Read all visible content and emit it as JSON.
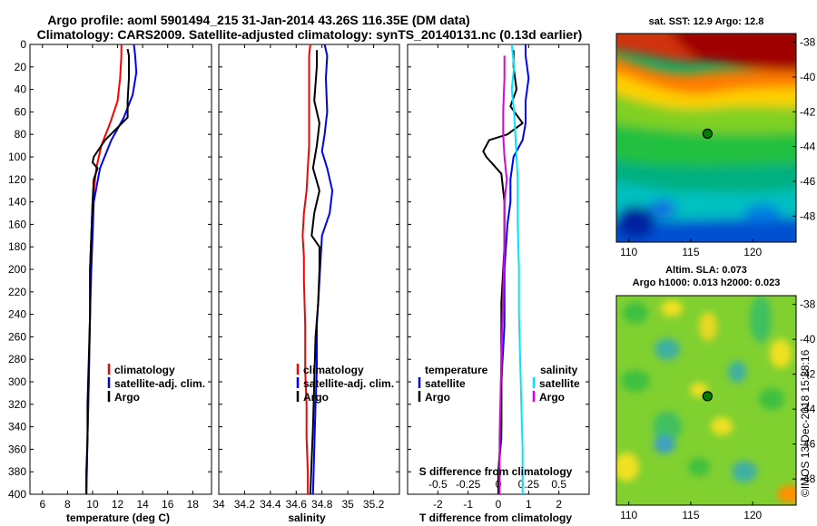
{
  "title_line1": "Argo profile: aoml 5901494_215 31-Jan-2014 43.26S 116.35E (DM data)",
  "title_line2": "Climatology: CARS2009. Satellite-adjusted climatology: synTS_20140131.nc (0.13d earlier)",
  "watermark": "©IMOS 13-Dec-2018 15:28:16",
  "colors": {
    "climatology": "#ff0000",
    "satellite": "#0000ff",
    "argo": "#000000",
    "sat_sal": "#00e5ff",
    "argo_sal": "#e000e0",
    "marker": "#008000"
  },
  "chart_data": [
    {
      "type": "line",
      "id": "temperature",
      "xlabel": "temperature (deg C)",
      "ylabel": "",
      "xlim": [
        5,
        19.5
      ],
      "ylim": [
        400,
        0
      ],
      "xticks": [
        6,
        8,
        10,
        12,
        14,
        16,
        18
      ],
      "yticks": [
        0,
        20,
        40,
        60,
        80,
        100,
        120,
        140,
        160,
        180,
        200,
        220,
        240,
        260,
        280,
        300,
        320,
        340,
        360,
        380,
        400
      ],
      "legend": [
        "climatology",
        "satellite-adj. clim.",
        "Argo"
      ],
      "series": [
        {
          "name": "climatology",
          "color": "#ff0000",
          "x": [
            12.3,
            12.3,
            12.2,
            12.0,
            11.4,
            10.7,
            10.3,
            10.0,
            9.9,
            9.8,
            9.8,
            9.7,
            9.6,
            9.5
          ],
          "y": [
            0,
            10,
            30,
            50,
            70,
            90,
            110,
            140,
            170,
            200,
            240,
            300,
            350,
            400
          ]
        },
        {
          "name": "satellite-adj. clim.",
          "color": "#0000ff",
          "x": [
            13.3,
            13.4,
            13.5,
            13.2,
            12.5,
            11.5,
            10.6,
            10.1,
            10.0,
            9.9,
            9.8,
            9.7,
            9.6,
            9.5
          ],
          "y": [
            0,
            10,
            25,
            45,
            65,
            85,
            110,
            140,
            170,
            200,
            240,
            300,
            350,
            400
          ]
        },
        {
          "name": "Argo",
          "color": "#000000",
          "x": [
            12.8,
            12.9,
            12.9,
            12.8,
            12.8,
            11.0,
            10.1,
            10.0,
            10.4,
            10.1,
            10.0,
            9.9,
            9.8,
            9.8,
            9.7,
            9.6,
            9.6,
            9.5,
            9.5
          ],
          "y": [
            4,
            10,
            30,
            50,
            65,
            85,
            100,
            105,
            110,
            120,
            140,
            170,
            200,
            240,
            280,
            320,
            350,
            380,
            400
          ]
        }
      ]
    },
    {
      "type": "line",
      "id": "salinity",
      "xlabel": "salinity",
      "ylabel": "",
      "xlim": [
        34,
        35.4
      ],
      "ylim": [
        400,
        0
      ],
      "xticks": [
        34,
        34.2,
        34.4,
        34.6,
        34.8,
        35,
        35.2
      ],
      "legend": [
        "climatology",
        "satellite-adj. clim.",
        "Argo"
      ],
      "series": [
        {
          "name": "climatology",
          "color": "#ff0000",
          "x": [
            34.71,
            34.7,
            34.7,
            34.7,
            34.7,
            34.69,
            34.68,
            34.66,
            34.65,
            34.66,
            34.66,
            34.67,
            34.67,
            34.68,
            34.68,
            34.69,
            34.69
          ],
          "y": [
            0,
            10,
            30,
            60,
            90,
            110,
            130,
            150,
            170,
            190,
            210,
            250,
            290,
            320,
            350,
            380,
            400
          ]
        },
        {
          "name": "satellite-adj. clim.",
          "color": "#0000ff",
          "x": [
            34.82,
            34.84,
            34.83,
            34.84,
            34.82,
            34.8,
            34.84,
            34.88,
            34.86,
            34.8,
            34.79,
            34.78,
            34.76,
            34.76,
            34.75,
            34.74,
            34.73
          ],
          "y": [
            0,
            10,
            30,
            60,
            80,
            95,
            110,
            130,
            150,
            170,
            190,
            210,
            250,
            290,
            320,
            360,
            400
          ]
        },
        {
          "name": "Argo",
          "color": "#000000",
          "x": [
            34.76,
            34.76,
            34.74,
            34.78,
            34.76,
            34.73,
            34.78,
            34.74,
            34.72,
            34.78,
            34.78,
            34.77,
            34.75,
            34.74,
            34.73,
            34.72,
            34.71
          ],
          "y": [
            5,
            20,
            50,
            70,
            90,
            110,
            130,
            150,
            170,
            180,
            200,
            230,
            260,
            300,
            340,
            370,
            400
          ]
        }
      ]
    },
    {
      "type": "line",
      "id": "difference",
      "xlabel": "T difference from climatology",
      "xlabel_top": "S difference from climatology",
      "xlim": [
        -3,
        3
      ],
      "ylim": [
        400,
        0
      ],
      "xticks": [
        -2,
        -1,
        0,
        1,
        2
      ],
      "xticks_top": [
        -0.5,
        -0.25,
        0,
        0.25,
        0.5
      ],
      "legend_temperature_title": "temperature",
      "legend_salinity_title": "salinity",
      "legend": [
        "satellite",
        "Argo",
        "satellite",
        "Argo"
      ],
      "series": [
        {
          "name": "temperature satellite",
          "color": "#0000ff",
          "x": [
            0.9,
            0.9,
            1.0,
            0.9,
            0.9,
            0.8,
            0.5,
            0.4,
            0.4,
            0.3,
            0.2,
            0.2,
            0.1,
            0.1,
            0.0,
            0.0
          ],
          "y": [
            0,
            10,
            30,
            50,
            70,
            85,
            100,
            120,
            140,
            160,
            200,
            250,
            300,
            350,
            380,
            400
          ]
        },
        {
          "name": "temperature Argo",
          "color": "#000000",
          "x": [
            0.5,
            0.5,
            0.6,
            0.4,
            0.8,
            0.3,
            -0.3,
            -0.5,
            -0.4,
            0.1,
            0.2,
            0.2,
            0.1,
            0.1,
            0.1,
            0.0,
            0.0
          ],
          "y": [
            5,
            20,
            40,
            55,
            70,
            80,
            85,
            95,
            100,
            115,
            140,
            180,
            230,
            290,
            340,
            380,
            400
          ]
        },
        {
          "name": "salinity satellite",
          "color": "#00e5ff",
          "x": [
            0.11,
            0.13,
            0.11,
            0.13,
            0.14,
            0.15,
            0.16,
            0.16,
            0.17,
            0.17,
            0.18,
            0.19,
            0.2,
            0.2
          ],
          "y": [
            0,
            20,
            40,
            60,
            80,
            100,
            120,
            160,
            200,
            240,
            280,
            320,
            360,
            400
          ]
        },
        {
          "name": "salinity Argo",
          "color": "#e000e0",
          "x": [
            0.05,
            0.05,
            0.04,
            0.04,
            0.05,
            0.07,
            0.05,
            0.05,
            0.04,
            0.03,
            0.02,
            0.01,
            0.01
          ],
          "y": [
            10,
            30,
            60,
            80,
            100,
            120,
            140,
            180,
            220,
            260,
            300,
            350,
            400
          ]
        }
      ]
    },
    {
      "type": "heatmap",
      "id": "sst-map",
      "title": "sat. SST: 12.9 Argo: 12.8",
      "xlim": [
        109,
        123.5
      ],
      "ylim": [
        -49.5,
        -37.5
      ],
      "xticks": [
        110,
        115,
        120
      ],
      "yticks": [
        -38,
        -40,
        -42,
        -44,
        -46,
        -48
      ],
      "marker": {
        "lon": 116.35,
        "lat": -43.26
      }
    },
    {
      "type": "heatmap",
      "id": "sla-map",
      "title_line1": "Altim. SLA: 0.073",
      "title_line2": "Argo h1000: 0.013 h2000: 0.023",
      "xlim": [
        109,
        123.5
      ],
      "ylim": [
        -49.5,
        -37.5
      ],
      "xticks": [
        110,
        115,
        120
      ],
      "yticks": [
        -38,
        -40,
        -42,
        -44,
        -46,
        -48
      ],
      "marker": {
        "lon": 116.35,
        "lat": -43.26
      }
    }
  ]
}
